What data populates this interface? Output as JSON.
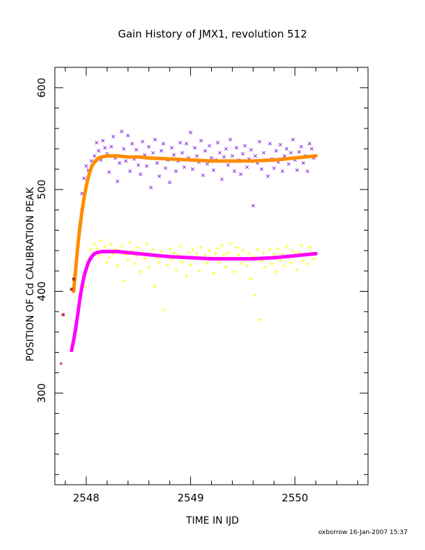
{
  "chart_data": {
    "type": "scatter",
    "title": "Gain History of JMX1, revolution 512",
    "xlabel": "TIME IN IJD",
    "ylabel": "POSITION OF Cd CALIBRATION PEAK",
    "xlim": [
      2547.7,
      2550.7
    ],
    "ylim": [
      210,
      620
    ],
    "x_ticks": [
      2548,
      2549,
      2550
    ],
    "y_ticks": [
      300,
      400,
      500,
      600
    ],
    "x_tick_labels": [
      "2548",
      "2549",
      "2550"
    ],
    "y_tick_labels": [
      "300",
      "400",
      "500",
      "600"
    ],
    "grid": false,
    "legend": "none",
    "footer": "oxborrow 16-Jan-2007 15:37",
    "colors": {
      "upper_scatter": "#8a2be2",
      "upper_fit": "#ff8c00",
      "lower_scatter": "#ffff00",
      "lower_fit": "#ff00ff",
      "early_points": "#b22222"
    },
    "series": [
      {
        "role": "upper_scatter",
        "marker": "x",
        "x": [
          2547.96,
          2547.98,
          2548.0,
          2548.02,
          2548.05,
          2548.08,
          2548.1,
          2548.12,
          2548.14,
          2548.16,
          2548.18,
          2548.2,
          2548.22,
          2548.24,
          2548.26,
          2548.28,
          2548.3,
          2548.32,
          2548.34,
          2548.36,
          2548.38,
          2548.4,
          2548.42,
          2548.44,
          2548.46,
          2548.48,
          2548.5,
          2548.52,
          2548.54,
          2548.56,
          2548.58,
          2548.6,
          2548.62,
          2548.64,
          2548.66,
          2548.68,
          2548.7,
          2548.72,
          2548.74,
          2548.76,
          2548.78,
          2548.8,
          2548.82,
          2548.84,
          2548.86,
          2548.88,
          2548.9,
          2548.92,
          2548.94,
          2548.96,
          2548.98,
          2549.0,
          2549.02,
          2549.04,
          2549.06,
          2549.08,
          2549.1,
          2549.12,
          2549.14,
          2549.16,
          2549.18,
          2549.2,
          2549.22,
          2549.24,
          2549.26,
          2549.28,
          2549.3,
          2549.32,
          2549.34,
          2549.36,
          2549.38,
          2549.4,
          2549.42,
          2549.44,
          2549.46,
          2549.48,
          2549.5,
          2549.52,
          2549.54,
          2549.56,
          2549.58,
          2549.6,
          2549.62,
          2549.64,
          2549.66,
          2549.68,
          2549.7,
          2549.72,
          2549.74,
          2549.76,
          2549.78,
          2549.8,
          2549.82,
          2549.84,
          2549.86,
          2549.88,
          2549.9,
          2549.92,
          2549.94,
          2549.96,
          2549.98,
          2550.0,
          2550.02,
          2550.04,
          2550.06,
          2550.08,
          2550.1,
          2550.12,
          2550.14,
          2550.16,
          2550.18
        ],
        "y": [
          496,
          511,
          523,
          519,
          528,
          533,
          546,
          538,
          529,
          548,
          541,
          535,
          517,
          542,
          552,
          531,
          508,
          526,
          557,
          540,
          528,
          553,
          518,
          545,
          530,
          539,
          524,
          515,
          547,
          534,
          523,
          542,
          502,
          536,
          549,
          526,
          513,
          538,
          545,
          521,
          529,
          507,
          541,
          534,
          518,
          528,
          546,
          536,
          522,
          545,
          531,
          556,
          520,
          541,
          533,
          527,
          548,
          514,
          538,
          525,
          543,
          531,
          519,
          529,
          546,
          536,
          510,
          532,
          540,
          524,
          549,
          533,
          518,
          541,
          529,
          515,
          535,
          543,
          522,
          530,
          539,
          484,
          533,
          526,
          547,
          520,
          536,
          529,
          513,
          545,
          530,
          521,
          538,
          527,
          544,
          518,
          533,
          540,
          525,
          536,
          549,
          529,
          519,
          537,
          542,
          526,
          533,
          518,
          545,
          540,
          531
        ]
      },
      {
        "role": "lower_scatter",
        "marker": "+",
        "x": [
          2547.98,
          2548.0,
          2548.02,
          2548.04,
          2548.06,
          2548.08,
          2548.1,
          2548.12,
          2548.14,
          2548.16,
          2548.18,
          2548.2,
          2548.22,
          2548.24,
          2548.26,
          2548.28,
          2548.3,
          2548.32,
          2548.34,
          2548.36,
          2548.38,
          2548.4,
          2548.42,
          2548.44,
          2548.46,
          2548.48,
          2548.5,
          2548.52,
          2548.54,
          2548.56,
          2548.58,
          2548.6,
          2548.62,
          2548.64,
          2548.66,
          2548.68,
          2548.7,
          2548.72,
          2548.74,
          2548.76,
          2548.78,
          2548.8,
          2548.82,
          2548.84,
          2548.86,
          2548.88,
          2548.9,
          2548.92,
          2548.94,
          2548.96,
          2548.98,
          2549.0,
          2549.02,
          2549.04,
          2549.06,
          2549.08,
          2549.1,
          2549.12,
          2549.14,
          2549.16,
          2549.18,
          2549.2,
          2549.22,
          2549.24,
          2549.26,
          2549.28,
          2549.3,
          2549.32,
          2549.34,
          2549.36,
          2549.38,
          2549.4,
          2549.42,
          2549.44,
          2549.46,
          2549.48,
          2549.5,
          2549.52,
          2549.54,
          2549.56,
          2549.58,
          2549.6,
          2549.62,
          2549.64,
          2549.66,
          2549.68,
          2549.7,
          2549.72,
          2549.74,
          2549.76,
          2549.78,
          2549.8,
          2549.82,
          2549.84,
          2549.86,
          2549.88,
          2549.9,
          2549.92,
          2549.94,
          2549.96,
          2549.98,
          2550.0,
          2550.02,
          2550.04,
          2550.06,
          2550.08,
          2550.1,
          2550.12,
          2550.14,
          2550.16,
          2550.18
        ],
        "y": [
          405,
          418,
          430,
          441,
          436,
          447,
          442,
          435,
          450,
          439,
          444,
          428,
          433,
          446,
          437,
          441,
          425,
          438,
          444,
          410,
          436,
          431,
          448,
          440,
          427,
          435,
          443,
          419,
          438,
          432,
          446,
          424,
          437,
          441,
          405,
          433,
          428,
          439,
          382,
          435,
          426,
          442,
          431,
          438,
          421,
          436,
          444,
          429,
          434,
          415,
          438,
          426,
          441,
          432,
          437,
          420,
          443,
          431,
          436,
          428,
          440,
          433,
          418,
          437,
          442,
          429,
          445,
          436,
          424,
          438,
          447,
          432,
          419,
          443,
          436,
          427,
          440,
          431,
          425,
          437,
          412,
          434,
          396,
          441,
          372,
          430,
          438,
          424,
          433,
          441,
          427,
          436,
          419,
          442,
          430,
          437,
          425,
          444,
          433,
          428,
          440,
          436,
          421,
          438,
          445,
          430,
          436,
          427,
          443,
          438,
          432
        ]
      },
      {
        "role": "upper_fit",
        "marker": "line",
        "x": [
          2547.88,
          2547.9,
          2547.92,
          2547.94,
          2547.96,
          2547.98,
          2548.0,
          2548.02,
          2548.04,
          2548.06,
          2548.08,
          2548.1,
          2548.12,
          2548.15,
          2548.2,
          2548.25,
          2548.3,
          2548.4,
          2548.5,
          2548.6,
          2548.8,
          2549.0,
          2549.2,
          2549.4,
          2549.6,
          2549.8,
          2550.0,
          2550.2
        ],
        "y": [
          400,
          423,
          445,
          463,
          479,
          492,
          503,
          512,
          519,
          524,
          527,
          529,
          531,
          532,
          533,
          533,
          533,
          532,
          532,
          531,
          530,
          529,
          528,
          528,
          528,
          529,
          531,
          533
        ]
      },
      {
        "role": "lower_fit",
        "marker": "line",
        "x": [
          2547.86,
          2547.88,
          2547.9,
          2547.92,
          2547.94,
          2547.96,
          2547.98,
          2548.0,
          2548.02,
          2548.04,
          2548.06,
          2548.08,
          2548.1,
          2548.15,
          2548.2,
          2548.3,
          2548.4,
          2548.5,
          2548.6,
          2548.8,
          2549.0,
          2549.2,
          2549.4,
          2549.6,
          2549.8,
          2550.0,
          2550.2
        ],
        "y": [
          342,
          352,
          364,
          378,
          393,
          405,
          415,
          422,
          428,
          432,
          435,
          437,
          438,
          439,
          439,
          439,
          438,
          437,
          436,
          434,
          433,
          432,
          432,
          432,
          433,
          435,
          437
        ]
      },
      {
        "role": "early_points",
        "marker": "*",
        "x": [
          2547.78,
          2547.86,
          2547.88
        ],
        "y": [
          377,
          402,
          412
        ]
      },
      {
        "role": "early_points",
        "marker": "+",
        "x": [
          2547.76
        ],
        "y": [
          329
        ]
      }
    ]
  }
}
